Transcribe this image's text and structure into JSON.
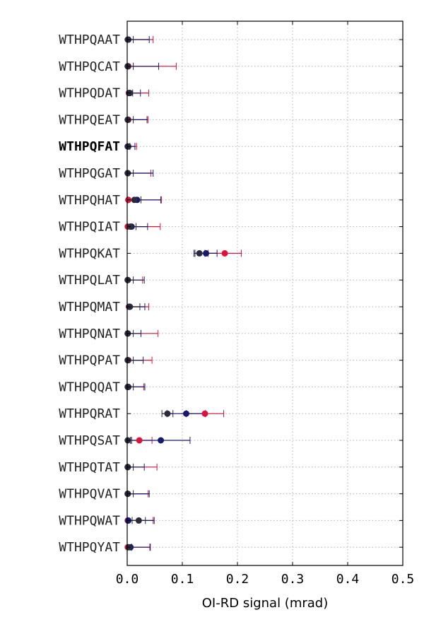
{
  "chart_data": {
    "type": "scatter",
    "orientation": "horizontal",
    "title": "",
    "xlabel": "OI-RD signal (mrad)",
    "ylabel": "",
    "xlim": [
      0.0,
      0.5
    ],
    "xticks": [
      "0.0",
      "0.1",
      "0.2",
      "0.3",
      "0.4",
      "0.5"
    ],
    "grid": true,
    "highlighted_category": "WTHPQFAT",
    "categories": [
      "WTHPQAAT",
      "WTHPQCAT",
      "WTHPQDAT",
      "WTHPQEAT",
      "WTHPQFAT",
      "WTHPQGAT",
      "WTHPQHAT",
      "WTHPQIAT",
      "WTHPQKAT",
      "WTHPQLAT",
      "WTHPQMAT",
      "WTHPQNAT",
      "WTHPQPAT",
      "WTHPQQAT",
      "WTHPQRAT",
      "WTHPQSAT",
      "WTHPQTAT",
      "WTHPQVAT",
      "WTHPQWAT",
      "WTHPQYAT"
    ],
    "series": [
      {
        "color": "#dc143c",
        "values": [
          0.002,
          0.002,
          0.003,
          0.002,
          0.001,
          0.001,
          0.002,
          0.001,
          0.177,
          0.001,
          0.003,
          0.001,
          0.002,
          0.001,
          0.141,
          0.022,
          0.001,
          0.001,
          0.001,
          0.001
        ],
        "errors": [
          0.045,
          0.087,
          0.036,
          0.036,
          0.016,
          0.042,
          0.06,
          0.059,
          0.03,
          0.027,
          0.036,
          0.055,
          0.043,
          0.029,
          0.034,
          0.023,
          0.053,
          0.037,
          0.046,
          0.04
        ]
      },
      {
        "color": "#191970",
        "values": [
          0.002,
          0.001,
          0.004,
          0.001,
          0.001,
          0.001,
          0.018,
          0.008,
          0.143,
          0.001,
          0.004,
          0.001,
          0.001,
          0.002,
          0.107,
          0.061,
          0.001,
          0.001,
          0.002,
          0.006
        ],
        "errors": [
          0.038,
          0.056,
          0.02,
          0.035,
          0.013,
          0.046,
          0.043,
          0.029,
          0.02,
          0.03,
          0.028,
          0.024,
          0.028,
          0.03,
          0.035,
          0.053,
          0.03,
          0.039,
          0.047,
          0.036
        ]
      },
      {
        "color": "#2a2a3a",
        "values": [
          0.001,
          0.001,
          0.005,
          0.001,
          0.002,
          0.001,
          0.013,
          0.006,
          0.131,
          0.001,
          0.005,
          0.001,
          0.001,
          0.001,
          0.073,
          0.001,
          0.001,
          0.001,
          0.021,
          0.003
        ],
        "errors": [
          0.01,
          0.01,
          0.005,
          0.01,
          0.003,
          0.01,
          0.012,
          0.01,
          0.01,
          0.01,
          0.018,
          0.01,
          0.01,
          0.01,
          0.01,
          0.005,
          0.01,
          0.01,
          0.012,
          0.005
        ]
      }
    ]
  }
}
